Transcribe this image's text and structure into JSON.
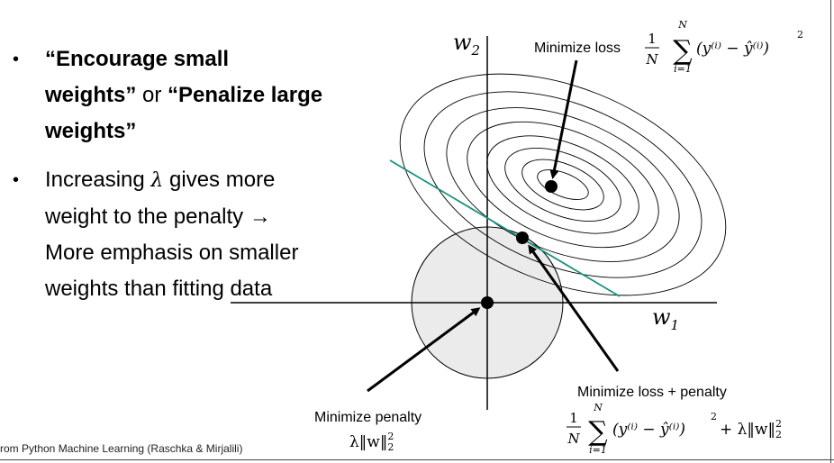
{
  "bullets": [
    {
      "parts": [
        {
          "text": "“Encourage small weights”",
          "bold": true
        },
        {
          "text": " or ",
          "bold": false
        },
        {
          "text": "“Penalize large weights”",
          "bold": true
        }
      ]
    },
    {
      "parts": [
        {
          "text": "Increasing ",
          "bold": false
        },
        {
          "text": "λ",
          "bold": false,
          "math": true
        },
        {
          "text": " gives more weight to the penalty → More emphasis on smaller weights than fitting data",
          "bold": false
        }
      ]
    }
  ],
  "diagram": {
    "axis_w2": "w",
    "axis_w2_sub": "2",
    "axis_w1": "w",
    "axis_w1_sub": "1",
    "label_loss": "Minimize loss",
    "label_penalty": "Minimize penalty",
    "label_loss_penalty": "Minimize loss + penalty",
    "loss_formula": {
      "frac_num": "1",
      "frac_den": "N",
      "sum_top": "N",
      "sum_bottom": "i=1",
      "body": "(y⁽ⁱ⁾ − ŷ⁽ⁱ⁾)",
      "exp": "2"
    },
    "penalty_formula": {
      "text": "λ‖w‖",
      "sub": "2",
      "sup": "2"
    },
    "combined_formula": {
      "frac_num": "1",
      "frac_den": "N",
      "sum_top": "N",
      "sum_bottom": "i=1",
      "body": "(y⁽ⁱ⁾ − ŷ⁽ⁱ⁾)",
      "exp": "2",
      "plus": "+ λ‖w‖",
      "tail_sub": "2",
      "tail_sup": "2"
    }
  },
  "source": "rom Python Machine Learning (Raschka & Mirjalili)",
  "colors": {
    "tangent_line": "#17917d",
    "circle_fill": "#ebebeb",
    "text": "#000000"
  }
}
